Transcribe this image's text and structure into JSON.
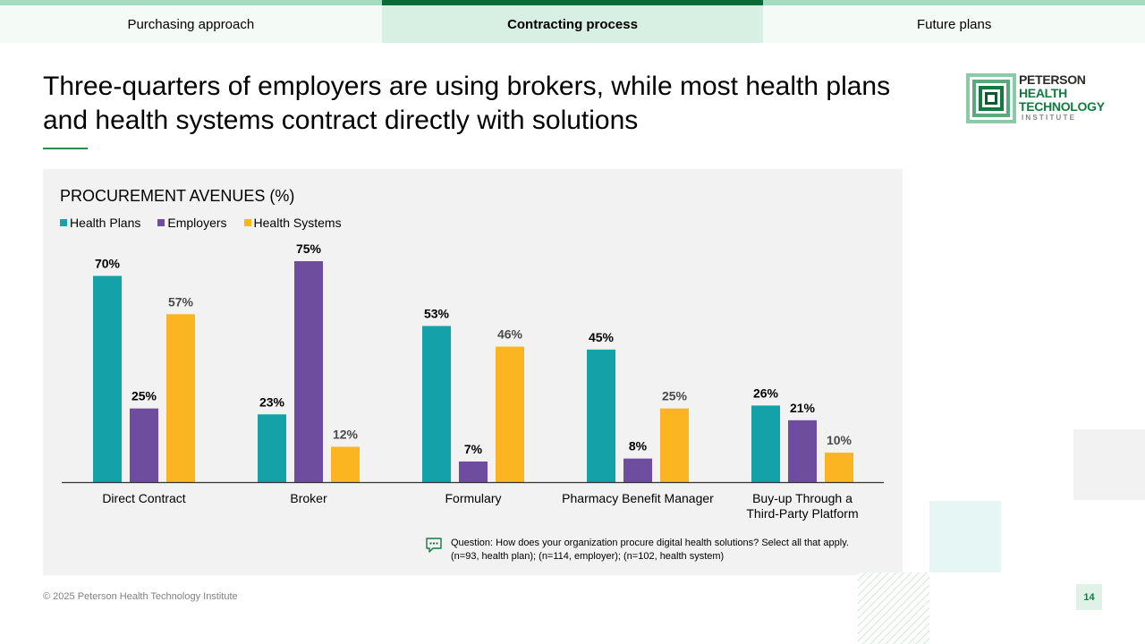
{
  "tabs": [
    "Purchasing approach",
    "Contracting process",
    "Future plans"
  ],
  "active_tab": 1,
  "page_title": "Three-quarters of employers are using brokers, while most health plans and health systems contract directly with solutions",
  "logo": {
    "line1": "PETERSON",
    "line2": "HEALTH",
    "line3": "TECHNOLOGY",
    "line4": "INSTITUTE"
  },
  "chart_data": {
    "type": "bar",
    "title": "PROCUREMENT AVENUES (%)",
    "categories": [
      "Direct Contract",
      "Broker",
      "Formulary",
      "Pharmacy Benefit Manager",
      "Buy-up Through a\nThird-Party Platform"
    ],
    "series": [
      {
        "name": "Health Plans",
        "color": "#14a2a8",
        "values": [
          70,
          23,
          53,
          45,
          26
        ]
      },
      {
        "name": "Employers",
        "color": "#6f4d9e",
        "values": [
          25,
          75,
          7,
          8,
          21
        ]
      },
      {
        "name": "Health Systems",
        "color": "#fbb521",
        "values": [
          57,
          12,
          46,
          25,
          10
        ]
      }
    ],
    "value_suffix": "%",
    "ylim": [
      0,
      75
    ],
    "xlabel": "",
    "ylabel": "",
    "grid": false,
    "legend_position": "top-left"
  },
  "note": {
    "line1": "Question: How does your organization procure digital health solutions? Select all that apply.",
    "line2": "(n=93, health plan); (n=114, employer); (n=102, health system)"
  },
  "footer": "© 2025 Peterson Health Technology Institute",
  "page_number": "14"
}
